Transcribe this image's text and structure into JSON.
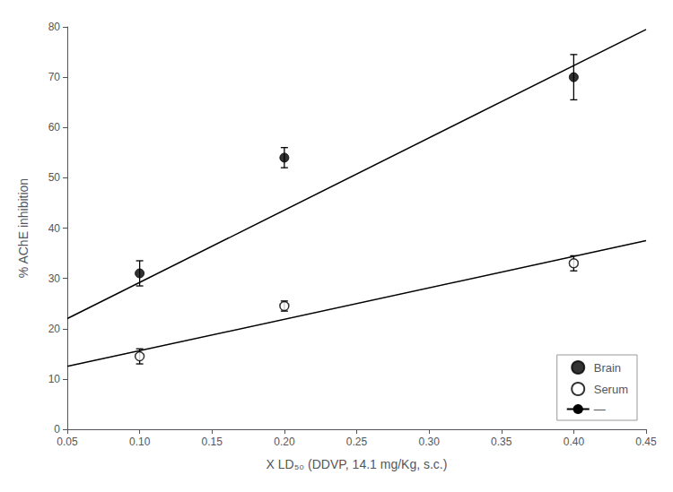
{
  "chart_data": {
    "type": "scatter",
    "xlabel": "X LD₅₀ (DDVP, 14.1 mg/Kg, s.c.)",
    "ylabel": "% AChE inhibition",
    "series": [
      {
        "name": "Brain",
        "type": "scatter",
        "marker": "circle",
        "color": "#000000",
        "x": [
          0.1,
          0.2,
          0.4
        ],
        "values": [
          31,
          54,
          70
        ],
        "yerr": [
          2.5,
          2.0,
          4.5
        ]
      },
      {
        "name": "Serum",
        "type": "scatter",
        "marker": "open_circle",
        "color": "#000000",
        "x": [
          0.1,
          0.2,
          0.4
        ],
        "values": [
          14.5,
          24.5,
          33
        ],
        "yerr": [
          1.5,
          1.0,
          1.5
        ]
      },
      {
        "name": "—",
        "type": "line",
        "line_style": "solid",
        "color": "#000000",
        "x": [
          0.05,
          0.45
        ],
        "values": [
          22.0,
          79.5
        ]
      },
      {
        "name": "—",
        "type": "line",
        "line_style": "solid",
        "color": "#000000",
        "x": [
          0.05,
          0.45
        ],
        "values": [
          12.5,
          37.5
        ]
      }
    ],
    "xlim": [
      0.05,
      0.45
    ],
    "ylim": [
      0,
      80
    ],
    "xticks": [
      0.05,
      {
        "value": 0.1,
        "label": "0.10"
      },
      0.15,
      {
        "value": 0.2,
        "label": "0.20"
      },
      0.25,
      {
        "value": 0.3,
        "label": "0.30"
      },
      0.35,
      {
        "value": 0.4,
        "label": "0.40"
      },
      0.45
    ],
    "yticks": [
      0,
      10,
      20,
      30,
      40,
      50,
      60,
      70,
      80
    ],
    "grid": false,
    "legend": "lower right"
  }
}
